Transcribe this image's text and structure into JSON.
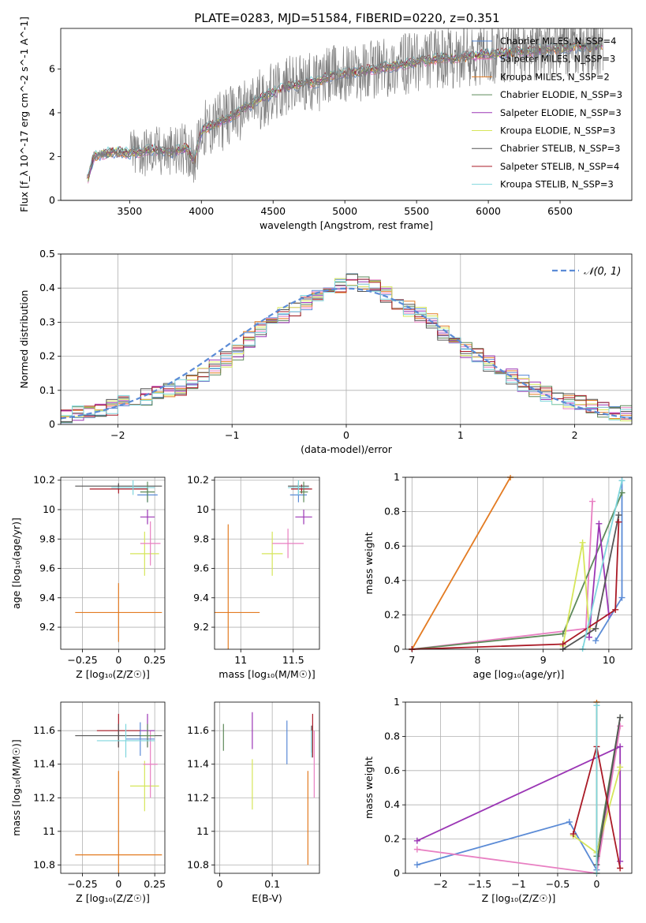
{
  "chart_data": [
    {
      "type": "line",
      "id": "spectrum",
      "title": "PLATE=0283, MJD=51584, FIBERID=0220, z=0.351",
      "xlabel": "wavelength [Angstrom, rest frame]",
      "ylabel": "Flux [f_λ 10^-17 erg cm^-2 s^-1 A^-1]",
      "xlim": [
        3020,
        7000
      ],
      "ylim": [
        0,
        7.85
      ],
      "xticks": [
        3500,
        4000,
        4500,
        5000,
        5500,
        6000,
        6500
      ],
      "yticks": [
        0,
        2,
        4,
        6
      ],
      "grid": false,
      "legend": "top-right",
      "data_spectrum": {
        "x": [
          3200,
          3250,
          3300,
          3400,
          3500,
          3600,
          3700,
          3800,
          3900,
          3950,
          4000,
          4100,
          4200,
          4300,
          4400,
          4500,
          4600,
          4700,
          4800,
          4900,
          5000,
          5100,
          5200,
          5300,
          5400,
          5500,
          5600,
          5700,
          5800,
          5900,
          6000,
          6100,
          6200,
          6300,
          6400,
          6500,
          6600,
          6700,
          6800
        ],
        "y": [
          0.8,
          2.0,
          2.1,
          2.2,
          2.15,
          2.25,
          2.3,
          2.2,
          2.4,
          1.8,
          3.2,
          3.5,
          3.8,
          4.2,
          4.6,
          4.9,
          5.2,
          5.3,
          5.4,
          5.7,
          5.8,
          5.9,
          6.0,
          6.1,
          6.2,
          6.3,
          6.4,
          6.5,
          6.5,
          6.6,
          6.7,
          6.7,
          6.8,
          6.8,
          6.9,
          6.9,
          7.0,
          7.0,
          7.1
        ]
      },
      "series": [
        {
          "name": "Chabrier MILES, N_SSP=4",
          "color": "#5b8bd6"
        },
        {
          "name": "Salpeter MILES, N_SSP=3",
          "color": "#e87fc2"
        },
        {
          "name": "Kroupa MILES, N_SSP=2",
          "color": "#e37b22"
        },
        {
          "name": "Chabrier ELODIE, N_SSP=3",
          "color": "#5e8a5a"
        },
        {
          "name": "Salpeter ELODIE, N_SSP=3",
          "color": "#9b36b5"
        },
        {
          "name": "Kroupa ELODIE, N_SSP=3",
          "color": "#d6e65a"
        },
        {
          "name": "Chabrier STELIB, N_SSP=3",
          "color": "#555555"
        },
        {
          "name": "Salpeter STELIB, N_SSP=4",
          "color": "#aa1a26"
        },
        {
          "name": "Kroupa STELIB, N_SSP=3",
          "color": "#7fd6dd"
        }
      ]
    },
    {
      "type": "line",
      "id": "residuals",
      "xlabel": "(data-model)/error",
      "ylabel": "Normed distribution",
      "xlim": [
        -2.5,
        2.5
      ],
      "ylim": [
        0,
        0.5
      ],
      "xticks": [
        -2,
        -1,
        0,
        1,
        2
      ],
      "yticks": [
        0.0,
        0.1,
        0.2,
        0.3,
        0.4,
        0.5
      ],
      "grid": true,
      "legend": "top-right",
      "legend_label": "𝒩(0, 1)",
      "normal_color": "#5b8bd6",
      "hist_bins": {
        "x": [
          -2.5,
          -2.4,
          -2.3,
          -2.2,
          -2.1,
          -2.0,
          -1.9,
          -1.8,
          -1.7,
          -1.6,
          -1.5,
          -1.4,
          -1.3,
          -1.2,
          -1.1,
          -1.0,
          -0.9,
          -0.8,
          -0.7,
          -0.6,
          -0.5,
          -0.4,
          -0.3,
          -0.2,
          -0.1,
          0.0,
          0.1,
          0.2,
          0.3,
          0.4,
          0.5,
          0.6,
          0.7,
          0.8,
          0.9,
          1.0,
          1.1,
          1.2,
          1.3,
          1.4,
          1.5,
          1.6,
          1.7,
          1.8,
          1.9,
          2.0,
          2.1,
          2.2,
          2.3,
          2.4
        ],
        "y": [
          0.02,
          0.03,
          0.04,
          0.04,
          0.05,
          0.06,
          0.07,
          0.08,
          0.09,
          0.1,
          0.11,
          0.13,
          0.15,
          0.17,
          0.19,
          0.21,
          0.25,
          0.28,
          0.3,
          0.32,
          0.34,
          0.36,
          0.38,
          0.4,
          0.41,
          0.42,
          0.41,
          0.4,
          0.38,
          0.36,
          0.34,
          0.32,
          0.3,
          0.27,
          0.24,
          0.22,
          0.2,
          0.18,
          0.16,
          0.14,
          0.12,
          0.1,
          0.09,
          0.08,
          0.07,
          0.06,
          0.05,
          0.04,
          0.03,
          0.03
        ]
      }
    },
    {
      "type": "scatter",
      "id": "age-vs-Z",
      "xlabel": "Z [log₁₀(Z/Z☉)]",
      "ylabel": "age  [log₁₀(age/yr)]",
      "xlim": [
        -0.4,
        0.32
      ],
      "ylim": [
        9.05,
        10.22
      ],
      "xticks": [
        -0.25,
        0.0,
        0.25
      ],
      "yticks": [
        9.2,
        9.4,
        9.6,
        9.8,
        10.0,
        10.2
      ],
      "grid": true,
      "points": [
        {
          "x": 0.0,
          "y": 9.3,
          "xerr": 0.3,
          "yerr": 0.2,
          "color": "#e37b22"
        },
        {
          "x": 0.18,
          "y": 9.7,
          "xerr": 0.1,
          "yerr": 0.15,
          "color": "#d6e65a"
        },
        {
          "x": 0.22,
          "y": 9.77,
          "xerr": 0.07,
          "yerr": 0.15,
          "color": "#e87fc2"
        },
        {
          "x": 0.2,
          "y": 9.95,
          "xerr": 0.05,
          "yerr": 0.05,
          "color": "#9b36b5"
        },
        {
          "x": 0.2,
          "y": 10.1,
          "xerr": 0.07,
          "yerr": 0.05,
          "color": "#5b8bd6"
        },
        {
          "x": 0.0,
          "y": 10.14,
          "xerr": 0.2,
          "yerr": 0.03,
          "color": "#aa1a26"
        },
        {
          "x": 0.0,
          "y": 10.16,
          "xerr": 0.3,
          "yerr": 0.02,
          "color": "#555555"
        },
        {
          "x": 0.2,
          "y": 10.12,
          "xerr": 0.05,
          "yerr": 0.07,
          "color": "#5e8a5a"
        },
        {
          "x": 0.1,
          "y": 10.15,
          "xerr": 0.15,
          "yerr": 0.05,
          "color": "#7fd6dd"
        }
      ]
    },
    {
      "type": "scatter",
      "id": "age-vs-mass",
      "xlabel": "mass [log₁₀(M/M☉)]",
      "ylabel": "",
      "xlim": [
        10.75,
        11.75
      ],
      "ylim": [
        9.05,
        10.22
      ],
      "xticks": [
        11.0,
        11.5
      ],
      "yticks": [
        9.2,
        9.4,
        9.6,
        9.8,
        10.0,
        10.2
      ],
      "grid": true,
      "points": [
        {
          "x": 10.88,
          "y": 9.3,
          "xerr": 0.3,
          "yerr": 0.6,
          "color": "#e37b22"
        },
        {
          "x": 11.3,
          "y": 9.7,
          "xerr": 0.1,
          "yerr": 0.15,
          "color": "#d6e65a"
        },
        {
          "x": 11.45,
          "y": 9.77,
          "xerr": 0.15,
          "yerr": 0.1,
          "color": "#e87fc2"
        },
        {
          "x": 11.6,
          "y": 9.95,
          "xerr": 0.08,
          "yerr": 0.05,
          "color": "#9b36b5"
        },
        {
          "x": 11.55,
          "y": 10.1,
          "xerr": 0.08,
          "yerr": 0.05,
          "color": "#5b8bd6"
        },
        {
          "x": 11.58,
          "y": 10.14,
          "xerr": 0.1,
          "yerr": 0.03,
          "color": "#aa1a26"
        },
        {
          "x": 11.55,
          "y": 10.16,
          "xerr": 0.1,
          "yerr": 0.02,
          "color": "#555555"
        },
        {
          "x": 11.6,
          "y": 10.12,
          "xerr": 0.04,
          "yerr": 0.07,
          "color": "#5e8a5a"
        },
        {
          "x": 11.55,
          "y": 10.15,
          "xerr": 0.1,
          "yerr": 0.05,
          "color": "#7fd6dd"
        }
      ]
    },
    {
      "type": "line",
      "id": "mass-weight-vs-age",
      "xlabel": "age  [log₁₀(age/yr)]",
      "ylabel": "mass weight",
      "xlim": [
        6.9,
        10.35
      ],
      "ylim": [
        0,
        1.0
      ],
      "xticks": [
        7,
        8,
        9,
        10
      ],
      "yticks": [
        0.0,
        0.2,
        0.4,
        0.6,
        0.8,
        1.0
      ],
      "grid": true,
      "series": [
        {
          "name": "Chabrier MILES",
          "color": "#5b8bd6",
          "x": [
            9.8,
            10.2,
            10.2
          ],
          "y": [
            0.05,
            0.3,
            0.98
          ]
        },
        {
          "name": "Salpeter MILES",
          "color": "#e87fc2",
          "x": [
            7.0,
            9.65,
            9.75
          ],
          "y": [
            0.0,
            0.12,
            0.86
          ]
        },
        {
          "name": "Kroupa MILES",
          "color": "#e37b22",
          "x": [
            7.0,
            8.5
          ],
          "y": [
            0.0,
            1.0
          ]
        },
        {
          "name": "Chabrier ELODIE",
          "color": "#5e8a5a",
          "x": [
            7.0,
            9.3,
            10.2
          ],
          "y": [
            0.0,
            0.09,
            0.91
          ]
        },
        {
          "name": "Salpeter ELODIE",
          "color": "#9b36b5",
          "x": [
            9.7,
            9.85,
            10.0
          ],
          "y": [
            0.07,
            0.73,
            0.2
          ]
        },
        {
          "name": "Kroupa ELODIE",
          "color": "#d6e65a",
          "x": [
            9.3,
            9.6,
            9.7
          ],
          "y": [
            0.02,
            0.62,
            0.12
          ]
        },
        {
          "name": "Chabrier STELIB",
          "color": "#555555",
          "x": [
            9.3,
            9.8,
            10.15
          ],
          "y": [
            0.0,
            0.12,
            0.78
          ]
        },
        {
          "name": "Salpeter STELIB",
          "color": "#aa1a26",
          "x": [
            7.0,
            9.3,
            10.1,
            10.15
          ],
          "y": [
            0.0,
            0.03,
            0.23,
            0.74
          ]
        },
        {
          "name": "Kroupa STELIB",
          "color": "#7fd6dd",
          "x": [
            9.6,
            10.2
          ],
          "y": [
            0.0,
            0.98
          ]
        }
      ]
    },
    {
      "type": "scatter",
      "id": "mass-vs-Z",
      "xlabel": "Z [log₁₀(Z/Z☉)]",
      "ylabel": "mass [log₁₀(M/M☉)]",
      "xlim": [
        -0.4,
        0.32
      ],
      "ylim": [
        10.75,
        11.77
      ],
      "xticks": [
        -0.25,
        0.0,
        0.25
      ],
      "yticks": [
        10.8,
        11.0,
        11.2,
        11.4,
        11.6
      ],
      "grid": true,
      "points": [
        {
          "x": 0.0,
          "y": 10.86,
          "xerr": 0.3,
          "yerr": 0.5,
          "color": "#e37b22"
        },
        {
          "x": 0.18,
          "y": 11.27,
          "xerr": 0.1,
          "yerr": 0.15,
          "color": "#d6e65a"
        },
        {
          "x": 0.22,
          "y": 11.4,
          "xerr": 0.05,
          "yerr": 0.2,
          "color": "#e87fc2"
        },
        {
          "x": 0.2,
          "y": 11.6,
          "xerr": 0.05,
          "yerr": 0.1,
          "color": "#9b36b5"
        },
        {
          "x": 0.15,
          "y": 11.55,
          "xerr": 0.1,
          "yerr": 0.1,
          "color": "#5b8bd6"
        },
        {
          "x": 0.0,
          "y": 11.6,
          "xerr": 0.15,
          "yerr": 0.1,
          "color": "#aa1a26"
        },
        {
          "x": 0.0,
          "y": 11.57,
          "xerr": 0.3,
          "yerr": 0.07,
          "color": "#555555"
        },
        {
          "x": 0.2,
          "y": 11.57,
          "xerr": 0.05,
          "yerr": 0.07,
          "color": "#5e8a5a"
        },
        {
          "x": 0.05,
          "y": 11.54,
          "xerr": 0.2,
          "yerr": 0.1,
          "color": "#7fd6dd"
        }
      ]
    },
    {
      "type": "scatter",
      "id": "mass-vs-EBV",
      "xlabel": "E(B-V)",
      "ylabel": "",
      "xlim": [
        -0.01,
        0.19
      ],
      "ylim": [
        10.75,
        11.77
      ],
      "xticks": [
        0.0,
        0.1
      ],
      "yticks": [
        10.8,
        11.0,
        11.2,
        11.4,
        11.6
      ],
      "grid": true,
      "points": [
        {
          "x": 0.168,
          "y": 11.08,
          "yerr": 0.28,
          "color": "#e37b22"
        },
        {
          "x": 0.062,
          "y": 11.28,
          "yerr": 0.15,
          "color": "#d6e65a"
        },
        {
          "x": 0.18,
          "y": 11.4,
          "yerr": 0.2,
          "color": "#e87fc2"
        },
        {
          "x": 0.062,
          "y": 11.6,
          "yerr": 0.11,
          "color": "#9b36b5"
        },
        {
          "x": 0.128,
          "y": 11.53,
          "yerr": 0.13,
          "color": "#5b8bd6"
        },
        {
          "x": 0.177,
          "y": 11.57,
          "yerr": 0.13,
          "color": "#aa1a26"
        },
        {
          "x": 0.175,
          "y": 11.55,
          "yerr": 0.08,
          "color": "#555555"
        },
        {
          "x": 0.007,
          "y": 11.56,
          "yerr": 0.08,
          "color": "#5e8a5a"
        },
        {
          "x": 0.175,
          "y": 11.52,
          "yerr": 0.08,
          "color": "#7fd6dd"
        }
      ]
    },
    {
      "type": "line",
      "id": "mass-weight-vs-Z",
      "xlabel": "Z [log₁₀(Z/Z☉)]",
      "ylabel": "mass weight",
      "xlim": [
        -2.45,
        0.45
      ],
      "ylim": [
        0,
        1.0
      ],
      "xticks": [
        -2.0,
        -1.5,
        -1.0,
        -0.5,
        0.0
      ],
      "yticks": [
        0.0,
        0.2,
        0.4,
        0.6,
        0.8,
        1.0
      ],
      "grid": true,
      "series": [
        {
          "name": "Chabrier MILES",
          "color": "#5b8bd6",
          "x": [
            -2.3,
            -0.35,
            0.0,
            0.0
          ],
          "y": [
            0.05,
            0.3,
            0.02,
            0.98
          ]
        },
        {
          "name": "Salpeter MILES",
          "color": "#e87fc2",
          "x": [
            -2.3,
            0.0,
            0.3
          ],
          "y": [
            0.14,
            0.0,
            0.86
          ]
        },
        {
          "name": "Kroupa MILES",
          "color": "#e37b22",
          "x": [
            0.0,
            0.0
          ],
          "y": [
            0.0,
            1.0
          ]
        },
        {
          "name": "Chabrier ELODIE",
          "color": "#5e8a5a",
          "x": [
            0.0,
            0.3
          ],
          "y": [
            0.1,
            0.91
          ]
        },
        {
          "name": "Salpeter ELODIE",
          "color": "#9b36b5",
          "x": [
            -2.3,
            0.3,
            0.3
          ],
          "y": [
            0.19,
            0.74,
            0.07
          ]
        },
        {
          "name": "Kroupa ELODIE",
          "color": "#d6e65a",
          "x": [
            -0.3,
            0.0,
            0.3
          ],
          "y": [
            0.22,
            0.12,
            0.62
          ]
        },
        {
          "name": "Chabrier STELIB",
          "color": "#555555",
          "x": [
            0.0,
            0.3
          ],
          "y": [
            0.05,
            0.91
          ]
        },
        {
          "name": "Salpeter STELIB",
          "color": "#aa1a26",
          "x": [
            -0.3,
            0.0,
            0.3
          ],
          "y": [
            0.23,
            0.74,
            0.03
          ]
        },
        {
          "name": "Kroupa STELIB",
          "color": "#7fd6dd",
          "x": [
            0.0,
            0.0
          ],
          "y": [
            0.0,
            0.98
          ]
        }
      ]
    }
  ]
}
